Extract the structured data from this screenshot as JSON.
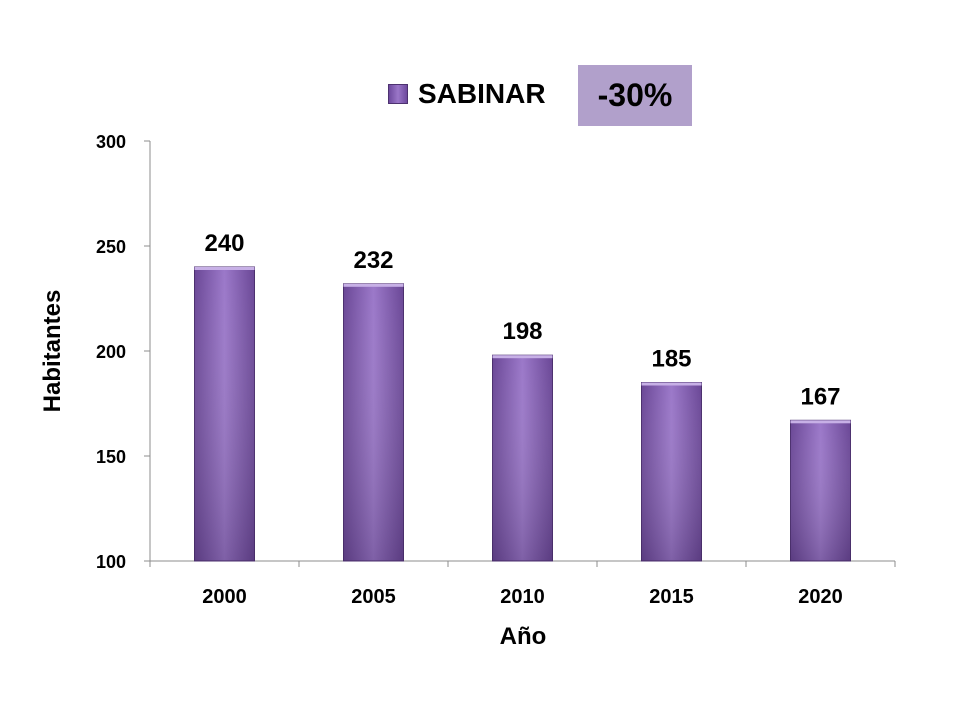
{
  "chart_data": {
    "type": "bar",
    "categories": [
      "2000",
      "2005",
      "2010",
      "2015",
      "2020"
    ],
    "series": [
      {
        "name": "SABINAR",
        "values": [
          240,
          232,
          198,
          185,
          167
        ]
      }
    ],
    "data_labels": [
      "240",
      "232",
      "198",
      "185",
      "167"
    ],
    "xlabel": "Año",
    "ylabel": "Habitantes",
    "ylim": [
      100,
      300
    ],
    "yticks": [
      100,
      150,
      200,
      250,
      300
    ],
    "grid": false,
    "legend_position": "top"
  },
  "annotation": {
    "text": "-30%"
  },
  "colors": {
    "bar_dark": "#6a4796",
    "bar_light": "#9b78c9",
    "bar_edge": "#4b2f6e",
    "badge_bg": "#b1a0cb",
    "axis": "#8c8c8c"
  }
}
